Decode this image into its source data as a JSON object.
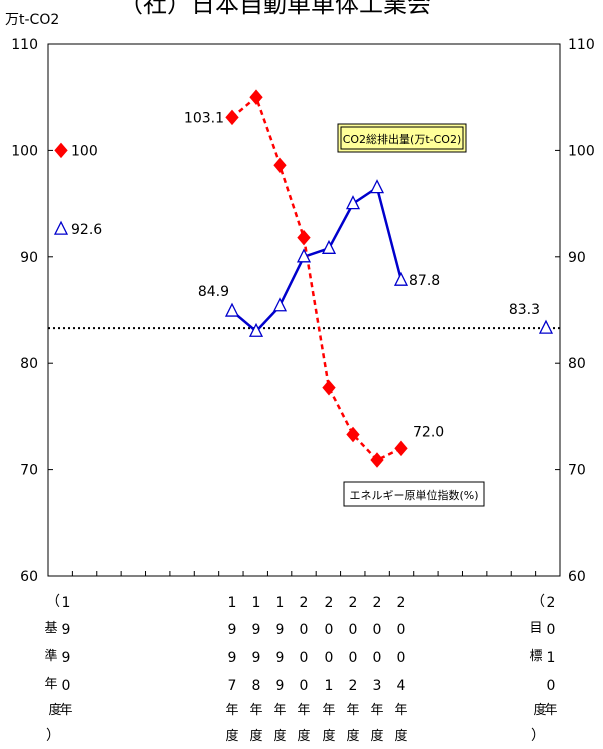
{
  "header": {
    "title": "（社）日本自動車車体工業会",
    "unit": "万t-CO2"
  },
  "chart_data": {
    "type": "line",
    "yticks": [
      60,
      70,
      80,
      90,
      100,
      110
    ],
    "ylim": [
      60,
      110
    ],
    "grid": false,
    "legend": "none",
    "categories": [
      "基準年度",
      "1997年度",
      "1998年度",
      "1999年度",
      "2000年度",
      "2001年度",
      "2002年度",
      "2003年度",
      "2004年度",
      "2010年度"
    ],
    "x_labels": [
      {
        "pre": "（",
        "digits": "1990",
        "suffix": "年",
        "side": "基準年",
        "post": "度）"
      },
      {
        "digits": "1997",
        "suffix": "年度"
      },
      {
        "digits": "1998",
        "suffix": "年度"
      },
      {
        "digits": "1999",
        "suffix": "年度"
      },
      {
        "digits": "2000",
        "suffix": "年度"
      },
      {
        "digits": "2001",
        "suffix": "年度"
      },
      {
        "digits": "2002",
        "suffix": "年度"
      },
      {
        "digits": "2003",
        "suffix": "年度"
      },
      {
        "digits": "2004",
        "suffix": "年度"
      },
      {
        "pre": "（",
        "digits": "2010",
        "suffix": "年",
        "side": "目標",
        "post": "度）"
      }
    ],
    "series": [
      {
        "name": "CO2総排出量(万t-CO2)",
        "color": "#0000cc",
        "marker": "triangle-open",
        "baseline": {
          "category": "基準年度",
          "value": 92.6
        },
        "points": [
          {
            "category": "1997年度",
            "value": 84.9
          },
          {
            "category": "1998年度",
            "value": 83.0
          },
          {
            "category": "1999年度",
            "value": 85.4
          },
          {
            "category": "2000年度",
            "value": 90.0
          },
          {
            "category": "2001年度",
            "value": 90.8
          },
          {
            "category": "2002年度",
            "value": 95.0
          },
          {
            "category": "2003年度",
            "value": 96.5
          },
          {
            "category": "2004年度",
            "value": 87.8
          }
        ],
        "target": {
          "category": "2010年度",
          "value": 83.3
        }
      },
      {
        "name": "エネルギー原単位指数(%)",
        "color": "#ff0000",
        "marker": "diamond",
        "baseline": {
          "category": "基準年度",
          "value": 100
        },
        "points": [
          {
            "category": "1997年度",
            "value": 103.1
          },
          {
            "category": "1998年度",
            "value": 105.0
          },
          {
            "category": "1999年度",
            "value": 98.6
          },
          {
            "category": "2000年度",
            "value": 91.8
          },
          {
            "category": "2001年度",
            "value": 77.7
          },
          {
            "category": "2002年度",
            "value": 73.3
          },
          {
            "category": "2003年度",
            "value": 70.9
          },
          {
            "category": "2004年度",
            "value": 72.0
          }
        ]
      }
    ],
    "reference_line": {
      "value": 83.3,
      "style": "dotted"
    },
    "data_labels": [
      {
        "series": 0,
        "which": "baseline",
        "text": "92.6"
      },
      {
        "series": 0,
        "which": 0,
        "text": "84.9"
      },
      {
        "series": 0,
        "which": 7,
        "text": "87.8"
      },
      {
        "series": 0,
        "which": "target",
        "text": "83.3"
      },
      {
        "series": 1,
        "which": "baseline",
        "text": "100"
      },
      {
        "series": 1,
        "which": 0,
        "text": "103.1"
      },
      {
        "series": 1,
        "which": 7,
        "text": "72.0"
      }
    ]
  }
}
